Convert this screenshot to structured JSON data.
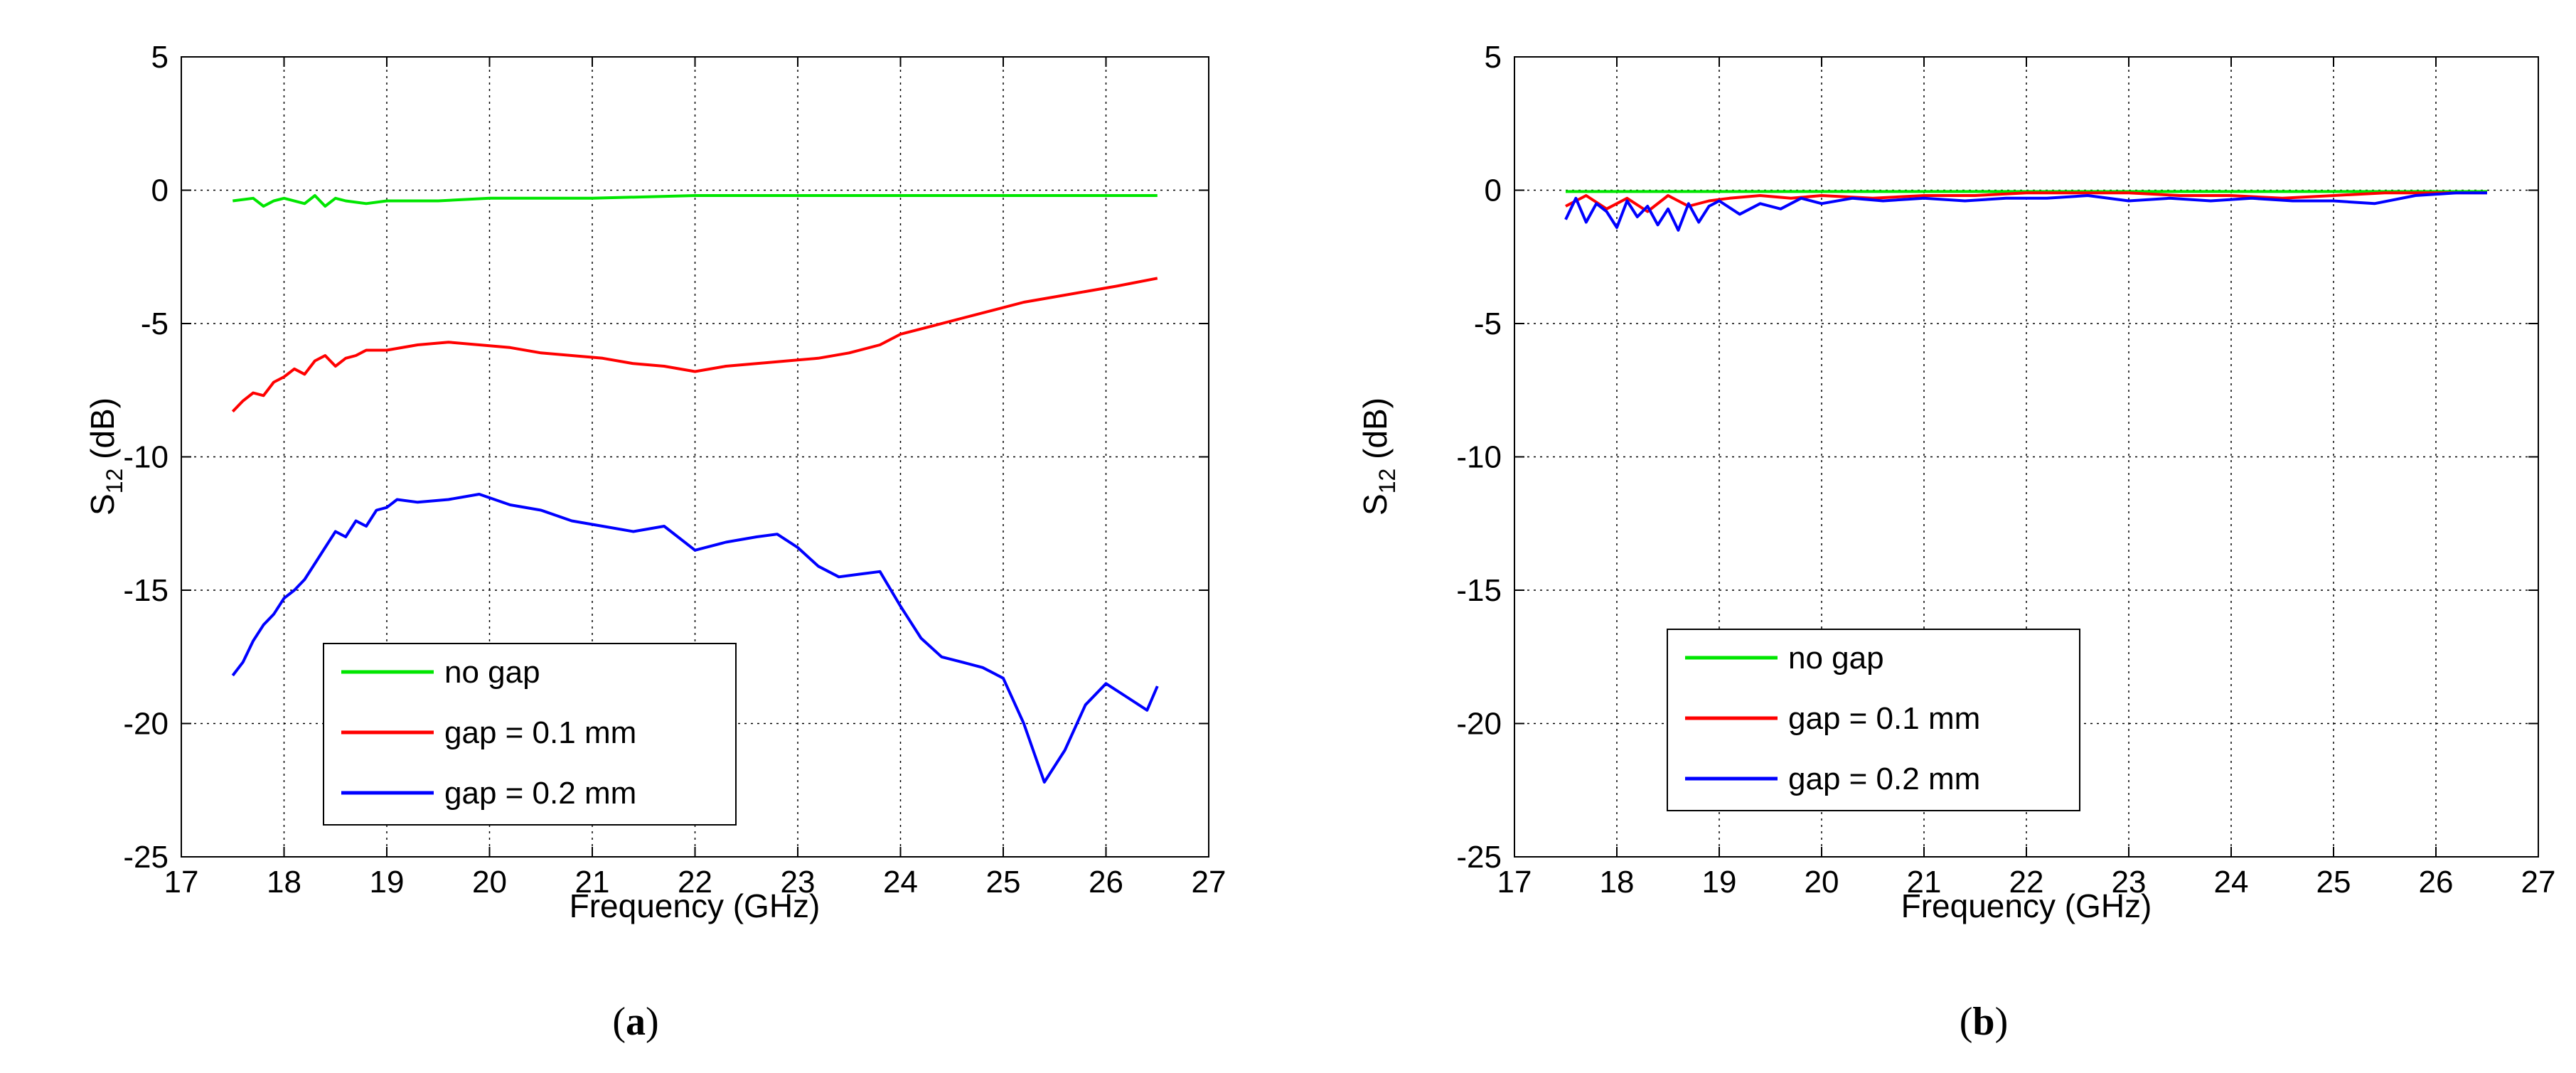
{
  "chart_data": [
    {
      "id": "a",
      "type": "line",
      "caption": "a",
      "title": "",
      "xlabel": "Frequency (GHz)",
      "ylabel_main": "S",
      "ylabel_sub": "12",
      "ylabel_unit": " (dB)",
      "xlim": [
        17,
        27
      ],
      "ylim": [
        -25,
        5
      ],
      "xticks": [
        17,
        18,
        19,
        20,
        21,
        22,
        23,
        24,
        25,
        26,
        27
      ],
      "xtick_labels": [
        "17",
        "18",
        "19",
        "20",
        "21",
        "22",
        "23",
        "24",
        "25",
        "26",
        "27"
      ],
      "yticks": [
        5,
        0,
        -5,
        -10,
        -15,
        -20,
        -25
      ],
      "ytick_labels": [
        "5",
        "0",
        "-5",
        "-10",
        "-15",
        "-20",
        "-25"
      ],
      "grid": true,
      "legend_position": "bottom-left",
      "series": [
        {
          "name": "no gap",
          "color": "#00e600",
          "x": [
            17.5,
            17.7,
            17.8,
            17.9,
            18.0,
            18.2,
            18.3,
            18.4,
            18.5,
            18.6,
            18.8,
            19.0,
            19.5,
            20.0,
            21.0,
            22.0,
            23.0,
            24.0,
            25.0,
            26.0,
            26.5
          ],
          "y": [
            -0.4,
            -0.3,
            -0.6,
            -0.4,
            -0.3,
            -0.5,
            -0.2,
            -0.6,
            -0.3,
            -0.4,
            -0.5,
            -0.4,
            -0.4,
            -0.3,
            -0.3,
            -0.2,
            -0.2,
            -0.2,
            -0.2,
            -0.2,
            -0.2
          ]
        },
        {
          "name": "gap = 0.1 mm",
          "color": "#ff0000",
          "x": [
            17.5,
            17.6,
            17.7,
            17.8,
            17.9,
            18.0,
            18.1,
            18.2,
            18.3,
            18.4,
            18.5,
            18.6,
            18.7,
            18.8,
            19.0,
            19.3,
            19.6,
            19.9,
            20.2,
            20.5,
            20.8,
            21.1,
            21.4,
            21.7,
            22.0,
            22.3,
            22.6,
            22.9,
            23.2,
            23.5,
            23.8,
            24.0,
            24.3,
            24.6,
            24.9,
            25.2,
            25.5,
            25.8,
            26.1,
            26.5
          ],
          "y": [
            -8.3,
            -7.9,
            -7.6,
            -7.7,
            -7.2,
            -7.0,
            -6.7,
            -6.9,
            -6.4,
            -6.2,
            -6.6,
            -6.3,
            -6.2,
            -6.0,
            -6.0,
            -5.8,
            -5.7,
            -5.8,
            -5.9,
            -6.1,
            -6.2,
            -6.3,
            -6.5,
            -6.6,
            -6.8,
            -6.6,
            -6.5,
            -6.4,
            -6.3,
            -6.1,
            -5.8,
            -5.4,
            -5.1,
            -4.8,
            -4.5,
            -4.2,
            -4.0,
            -3.8,
            -3.6,
            -3.3
          ]
        },
        {
          "name": "gap = 0.2 mm",
          "color": "#0000ff",
          "x": [
            17.5,
            17.6,
            17.7,
            17.8,
            17.9,
            18.0,
            18.1,
            18.2,
            18.3,
            18.4,
            18.5,
            18.6,
            18.7,
            18.8,
            18.9,
            19.0,
            19.1,
            19.3,
            19.6,
            19.9,
            20.2,
            20.5,
            20.8,
            21.1,
            21.4,
            21.7,
            22.0,
            22.3,
            22.6,
            22.8,
            23.0,
            23.2,
            23.4,
            23.6,
            23.8,
            24.0,
            24.2,
            24.4,
            24.6,
            24.8,
            25.0,
            25.2,
            25.4,
            25.6,
            25.8,
            26.0,
            26.2,
            26.4,
            26.5
          ],
          "y": [
            -18.2,
            -17.7,
            -16.9,
            -16.3,
            -15.9,
            -15.3,
            -15.0,
            -14.6,
            -14.0,
            -13.4,
            -12.8,
            -13.0,
            -12.4,
            -12.6,
            -12.0,
            -11.9,
            -11.6,
            -11.7,
            -11.6,
            -11.4,
            -11.8,
            -12.0,
            -12.4,
            -12.6,
            -12.8,
            -12.6,
            -13.5,
            -13.2,
            -13.0,
            -12.9,
            -13.4,
            -14.1,
            -14.5,
            -14.4,
            -14.3,
            -15.6,
            -16.8,
            -17.5,
            -17.7,
            -17.9,
            -18.3,
            -20.0,
            -22.2,
            -21.0,
            -19.3,
            -18.5,
            -19.0,
            -19.5,
            -18.6
          ]
        }
      ]
    },
    {
      "id": "b",
      "type": "line",
      "caption": "b",
      "title": "",
      "xlabel": "Frequency (GHz)",
      "ylabel_main": "S",
      "ylabel_sub": "12",
      "ylabel_unit": " (dB)",
      "xlim": [
        17,
        27
      ],
      "ylim": [
        -25,
        5
      ],
      "xticks": [
        17,
        18,
        19,
        20,
        21,
        22,
        23,
        24,
        25,
        26,
        27
      ],
      "xtick_labels": [
        "17",
        "18",
        "19",
        "20",
        "21",
        "22",
        "23",
        "24",
        "25",
        "26",
        "27"
      ],
      "yticks": [
        5,
        0,
        -5,
        -10,
        -15,
        -20,
        -25
      ],
      "ytick_labels": [
        "5",
        "0",
        "-5",
        "-10",
        "-15",
        "-20",
        "-25"
      ],
      "grid": true,
      "legend_position": "bottom-left",
      "series": [
        {
          "name": "no gap",
          "color": "#00e600",
          "x": [
            17.5,
            18.0,
            19.0,
            20.0,
            21.0,
            22.0,
            23.0,
            24.0,
            25.0,
            26.0,
            26.5
          ],
          "y": [
            -0.05,
            -0.05,
            -0.05,
            -0.05,
            -0.05,
            -0.05,
            -0.05,
            -0.05,
            -0.05,
            -0.05,
            -0.05
          ]
        },
        {
          "name": "gap = 0.1 mm",
          "color": "#ff0000",
          "x": [
            17.5,
            17.7,
            17.9,
            18.1,
            18.3,
            18.5,
            18.7,
            18.9,
            19.1,
            19.4,
            19.7,
            20.0,
            20.5,
            21.0,
            21.5,
            22.0,
            22.5,
            23.0,
            23.5,
            24.0,
            24.5,
            25.0,
            25.5,
            26.0,
            26.5
          ],
          "y": [
            -0.6,
            -0.2,
            -0.7,
            -0.3,
            -0.8,
            -0.2,
            -0.6,
            -0.4,
            -0.3,
            -0.2,
            -0.3,
            -0.2,
            -0.3,
            -0.2,
            -0.2,
            -0.1,
            -0.1,
            -0.1,
            -0.2,
            -0.2,
            -0.3,
            -0.2,
            -0.1,
            -0.1,
            -0.1
          ]
        },
        {
          "name": "gap = 0.2 mm",
          "color": "#0000ff",
          "x": [
            17.5,
            17.6,
            17.7,
            17.8,
            17.9,
            18.0,
            18.1,
            18.2,
            18.3,
            18.4,
            18.5,
            18.6,
            18.7,
            18.8,
            18.9,
            19.0,
            19.2,
            19.4,
            19.6,
            19.8,
            20.0,
            20.3,
            20.6,
            21.0,
            21.4,
            21.8,
            22.2,
            22.6,
            23.0,
            23.4,
            23.8,
            24.2,
            24.6,
            25.0,
            25.4,
            25.8,
            26.2,
            26.5
          ],
          "y": [
            -1.1,
            -0.3,
            -1.2,
            -0.5,
            -0.8,
            -1.4,
            -0.4,
            -1.0,
            -0.6,
            -1.3,
            -0.7,
            -1.5,
            -0.5,
            -1.2,
            -0.6,
            -0.4,
            -0.9,
            -0.5,
            -0.7,
            -0.3,
            -0.5,
            -0.3,
            -0.4,
            -0.3,
            -0.4,
            -0.3,
            -0.3,
            -0.2,
            -0.4,
            -0.3,
            -0.4,
            -0.3,
            -0.4,
            -0.4,
            -0.5,
            -0.2,
            -0.1,
            -0.1
          ]
        }
      ]
    }
  ]
}
